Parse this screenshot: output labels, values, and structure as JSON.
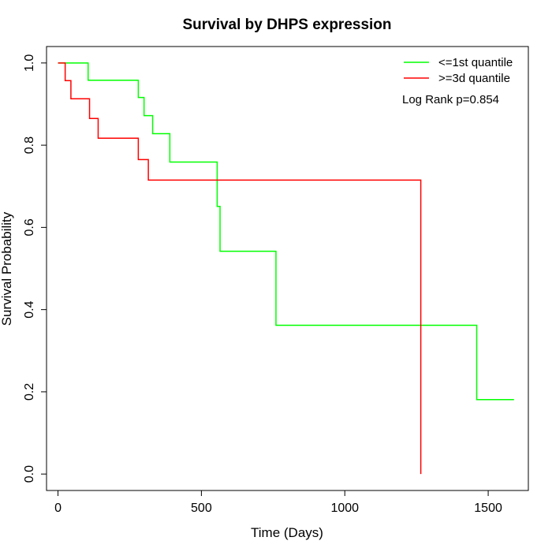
{
  "chart_data": {
    "type": "line",
    "step": true,
    "title": "Survival by DHPS expression",
    "xlabel": "Time (Days)",
    "ylabel": "Survival Probability",
    "xlim": [
      -40,
      1640
    ],
    "ylim": [
      -0.04,
      1.04
    ],
    "xticks": [
      0,
      500,
      1000,
      1500
    ],
    "yticks": [
      0.0,
      0.2,
      0.4,
      0.6,
      0.8,
      1.0
    ],
    "xtick_labels": [
      "0",
      "500",
      "1000",
      "1500"
    ],
    "ytick_labels": [
      "0.0",
      "0.2",
      "0.4",
      "0.6",
      "0.8",
      "1.0"
    ],
    "grid": false,
    "legend_position": "top-right",
    "annotation": "Log Rank p=0.854",
    "series": [
      {
        "name": "<=1st quantile",
        "color": "#00ff00",
        "x": [
          0,
          105,
          280,
          300,
          330,
          390,
          555,
          565,
          760,
          1460,
          1590
        ],
        "y": [
          1.0,
          0.958,
          0.916,
          0.872,
          0.828,
          0.759,
          0.651,
          0.542,
          0.362,
          0.181,
          0.181
        ]
      },
      {
        "name": ">=3d quantile",
        "color": "#ff0000",
        "x": [
          0,
          25,
          45,
          110,
          140,
          280,
          315,
          1265
        ],
        "y": [
          1.0,
          0.957,
          0.913,
          0.865,
          0.817,
          0.765,
          0.715,
          0.0
        ]
      }
    ]
  }
}
